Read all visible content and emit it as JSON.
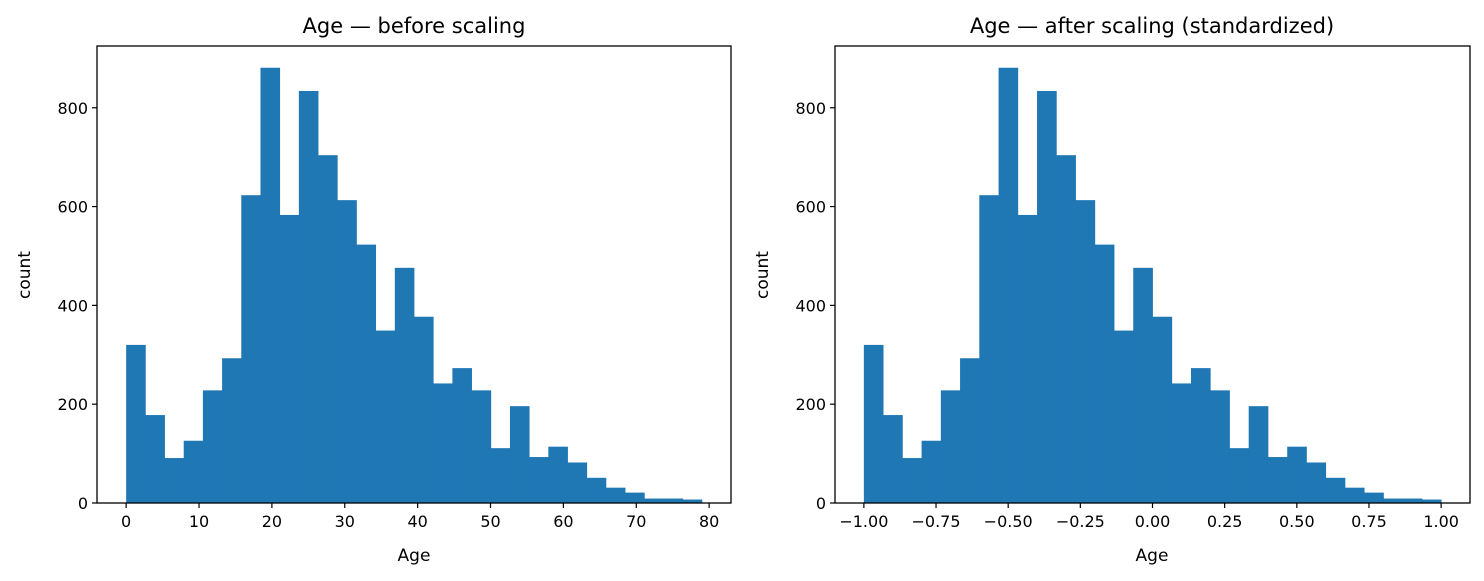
{
  "chart_data": [
    {
      "type": "bar",
      "title": "Age — before scaling",
      "xlabel": "Age",
      "ylabel": "count",
      "xlim": [
        -4,
        83
      ],
      "ylim": [
        0,
        925
      ],
      "grid": false,
      "color": "#1f77b4",
      "x_ticks": [
        0,
        10,
        20,
        30,
        40,
        50,
        60,
        70,
        80
      ],
      "x_tick_labels": [
        "0",
        "10",
        "20",
        "30",
        "40",
        "50",
        "60",
        "70",
        "80"
      ],
      "y_ticks": [
        0,
        200,
        400,
        600,
        800
      ],
      "y_tick_labels": [
        "0",
        "200",
        "400",
        "600",
        "800"
      ],
      "bin_edges": [
        0.0,
        2.633,
        5.267,
        7.9,
        10.533,
        13.167,
        15.8,
        18.433,
        21.067,
        23.7,
        26.333,
        28.967,
        31.6,
        34.233,
        36.867,
        39.5,
        42.133,
        44.767,
        47.4,
        50.033,
        52.667,
        55.3,
        57.933,
        60.567,
        63.2,
        65.833,
        68.467,
        71.1,
        73.733,
        76.367,
        79.0
      ],
      "values": [
        320,
        178,
        91,
        126,
        228,
        293,
        623,
        881,
        583,
        834,
        704,
        613,
        523,
        349,
        476,
        377,
        242,
        273,
        228,
        111,
        196,
        93,
        114,
        82,
        51,
        31,
        21,
        9,
        9,
        7
      ]
    },
    {
      "type": "bar",
      "title": "Age — after scaling (standardized)",
      "xlabel": "Age",
      "ylabel": "count",
      "xlim": [
        -1.1,
        1.1
      ],
      "ylim": [
        0,
        925
      ],
      "grid": false,
      "color": "#1f77b4",
      "x_ticks": [
        -1.0,
        -0.75,
        -0.5,
        -0.25,
        0.0,
        0.25,
        0.5,
        0.75,
        1.0
      ],
      "x_tick_labels": [
        "−1.00",
        "−0.75",
        "−0.50",
        "−0.25",
        "0.00",
        "0.25",
        "0.50",
        "0.75",
        "1.00"
      ],
      "y_ticks": [
        0,
        200,
        400,
        600,
        800
      ],
      "y_tick_labels": [
        "0",
        "200",
        "400",
        "600",
        "800"
      ],
      "bin_edges": [
        -1.0,
        -0.9333,
        -0.8667,
        -0.8,
        -0.7333,
        -0.6667,
        -0.6,
        -0.5333,
        -0.4667,
        -0.4,
        -0.3333,
        -0.2667,
        -0.2,
        -0.1333,
        -0.0667,
        0.0,
        0.0667,
        0.1333,
        0.2,
        0.2667,
        0.3333,
        0.4,
        0.4667,
        0.5333,
        0.6,
        0.6667,
        0.7333,
        0.8,
        0.8667,
        0.9333,
        1.0
      ],
      "values": [
        320,
        178,
        91,
        126,
        228,
        293,
        623,
        881,
        583,
        834,
        704,
        613,
        523,
        349,
        476,
        377,
        242,
        273,
        228,
        111,
        196,
        93,
        114,
        82,
        51,
        31,
        21,
        9,
        9,
        7
      ]
    }
  ]
}
